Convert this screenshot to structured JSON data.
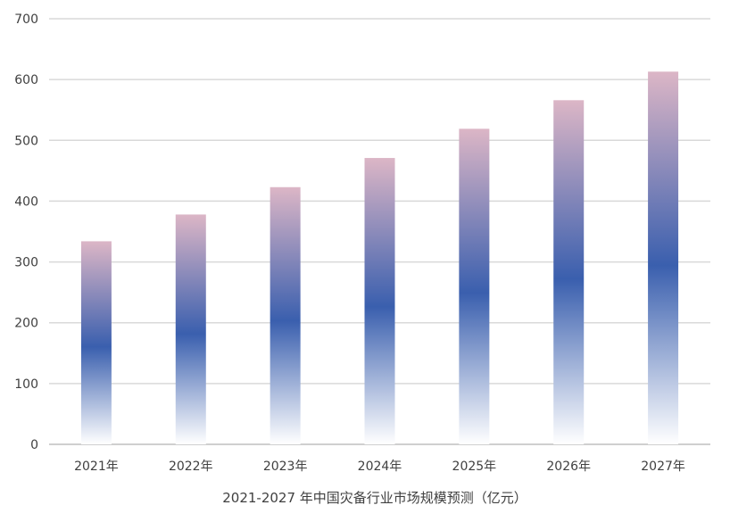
{
  "chart_data": {
    "type": "bar",
    "title": "",
    "xlabel": "2021-2027 年中国灾备行业市场规模预测（亿元）",
    "ylabel": "",
    "categories": [
      "2021年",
      "2022年",
      "2023年",
      "2024年",
      "2025年",
      "2026年",
      "2027年"
    ],
    "series": [
      {
        "name": "市场规模",
        "values": [
          334,
          378,
          423,
          471,
          519,
          566,
          613
        ]
      }
    ],
    "ylim": [
      0,
      700
    ],
    "yticks": [
      0,
      100,
      200,
      300,
      400,
      500,
      600,
      700
    ],
    "grid": true,
    "legend": "none",
    "colors": {
      "bar_top": "#dcb6c6",
      "bar_mid": "#3a5fae",
      "bar_bottom": "#ffffff",
      "grid": "#d9d9d9",
      "axis": "#bfbfbf"
    }
  }
}
